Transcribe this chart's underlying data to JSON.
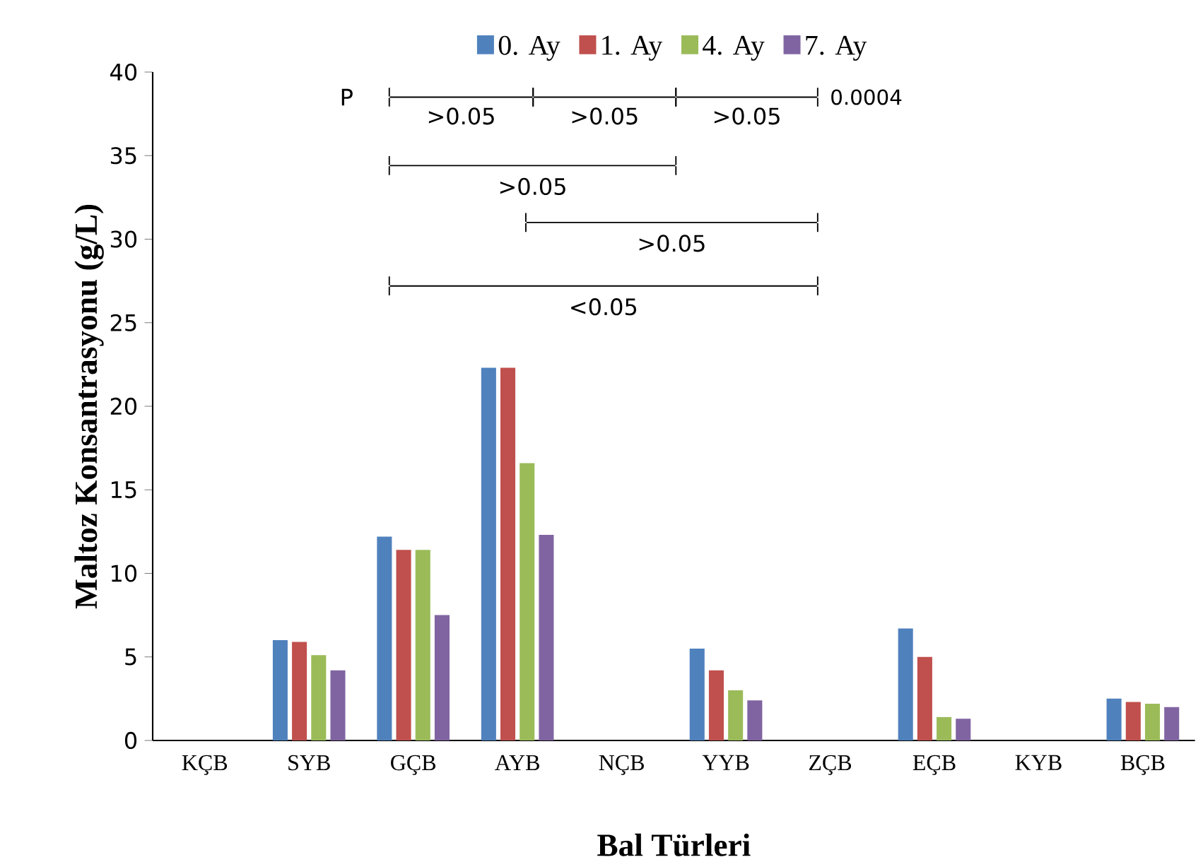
{
  "chart_data": {
    "type": "bar",
    "xlabel": "Bal Türleri",
    "ylabel": "Maltoz Konsantrasyonu (g/L)",
    "categories": [
      "KÇB",
      "SYB",
      "GÇB",
      "AYB",
      "NÇB",
      "YYB",
      "ZÇB",
      "EÇB",
      "KYB",
      "BÇB"
    ],
    "series": [
      {
        "name": "0. Ay",
        "color": "#4f81bd",
        "values": [
          null,
          6.0,
          12.2,
          22.3,
          null,
          5.5,
          null,
          6.7,
          null,
          2.5
        ]
      },
      {
        "name": "1. Ay",
        "color": "#c0504d",
        "values": [
          null,
          5.9,
          11.4,
          22.3,
          null,
          4.2,
          null,
          5.0,
          null,
          2.3
        ]
      },
      {
        "name": "4. Ay",
        "color": "#9bbb59",
        "values": [
          null,
          5.1,
          11.4,
          16.6,
          null,
          3.0,
          null,
          1.4,
          null,
          2.2
        ]
      },
      {
        "name": "7. Ay",
        "color": "#8064a2",
        "values": [
          null,
          4.2,
          7.5,
          12.3,
          null,
          2.4,
          null,
          1.3,
          null,
          2.0
        ]
      }
    ],
    "ylim": [
      0,
      40
    ],
    "yticks": [
      0,
      5,
      10,
      15,
      20,
      25,
      30,
      35,
      40
    ],
    "grid": false,
    "legend": "top",
    "annotations": [
      "P",
      ">0.05",
      ">0.05",
      ">0.05",
      "0.0004",
      ">0.05",
      ">0.05",
      "<0.05"
    ]
  }
}
